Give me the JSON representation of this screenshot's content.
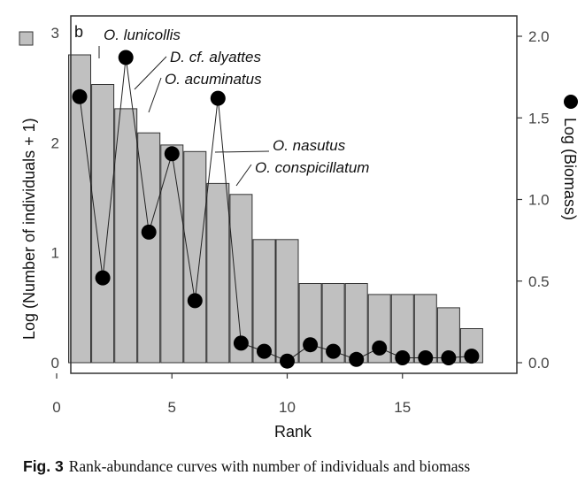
{
  "chart_data": {
    "type": "bar+line",
    "panel_label": "b",
    "xlabel": "Rank",
    "ylabel_left": "Log (Number of individuals + 1)",
    "ylabel_right": "Log (Biomass)",
    "xlim": [
      0,
      19
    ],
    "x_ticks": [
      0,
      5,
      10,
      15
    ],
    "ylim_left": [
      0,
      3
    ],
    "y_ticks_left": [
      0,
      1,
      2,
      3
    ],
    "ylim_right": [
      0,
      2
    ],
    "y_ticks_right": [
      "0.0",
      "0.5",
      "1.0",
      "1.5",
      "2.0"
    ],
    "bar_color": "#c0c0c0",
    "point_color": "#000000",
    "series": [
      {
        "name": "Log (Number of individuals + 1)",
        "axis": "left",
        "style": "bar",
        "x": [
          1,
          2,
          3,
          4,
          5,
          6,
          7,
          8,
          9,
          10,
          11,
          12,
          13,
          14,
          15,
          16,
          17,
          18
        ],
        "values": [
          2.8,
          2.53,
          2.31,
          2.09,
          1.98,
          1.92,
          1.63,
          1.53,
          1.12,
          1.12,
          0.72,
          0.72,
          0.72,
          0.62,
          0.62,
          0.62,
          0.5,
          0.31
        ]
      },
      {
        "name": "Log (Biomass)",
        "axis": "right",
        "style": "line-marker",
        "x": [
          1,
          2,
          3,
          4,
          5,
          6,
          7,
          8,
          9,
          10,
          11,
          12,
          13,
          14,
          15,
          16,
          17,
          18
        ],
        "values": [
          1.63,
          0.52,
          1.87,
          0.8,
          1.28,
          0.38,
          1.62,
          0.12,
          0.07,
          0.01,
          0.11,
          0.07,
          0.02,
          0.09,
          0.03,
          0.03,
          0.03,
          0.04
        ]
      }
    ],
    "annotations": [
      {
        "label": "O. lunicollis",
        "rank": 1
      },
      {
        "label": "D. cf. alyattes",
        "rank": 2
      },
      {
        "label": "O. acuminatus",
        "rank": 3
      },
      {
        "label": "O. nasutus",
        "rank": 6
      },
      {
        "label": "O. conspicillatum",
        "rank": 7
      }
    ]
  },
  "caption": {
    "figure_label": "Fig. 3",
    "text": "Rank-abundance curves with number of individuals and biomass"
  }
}
